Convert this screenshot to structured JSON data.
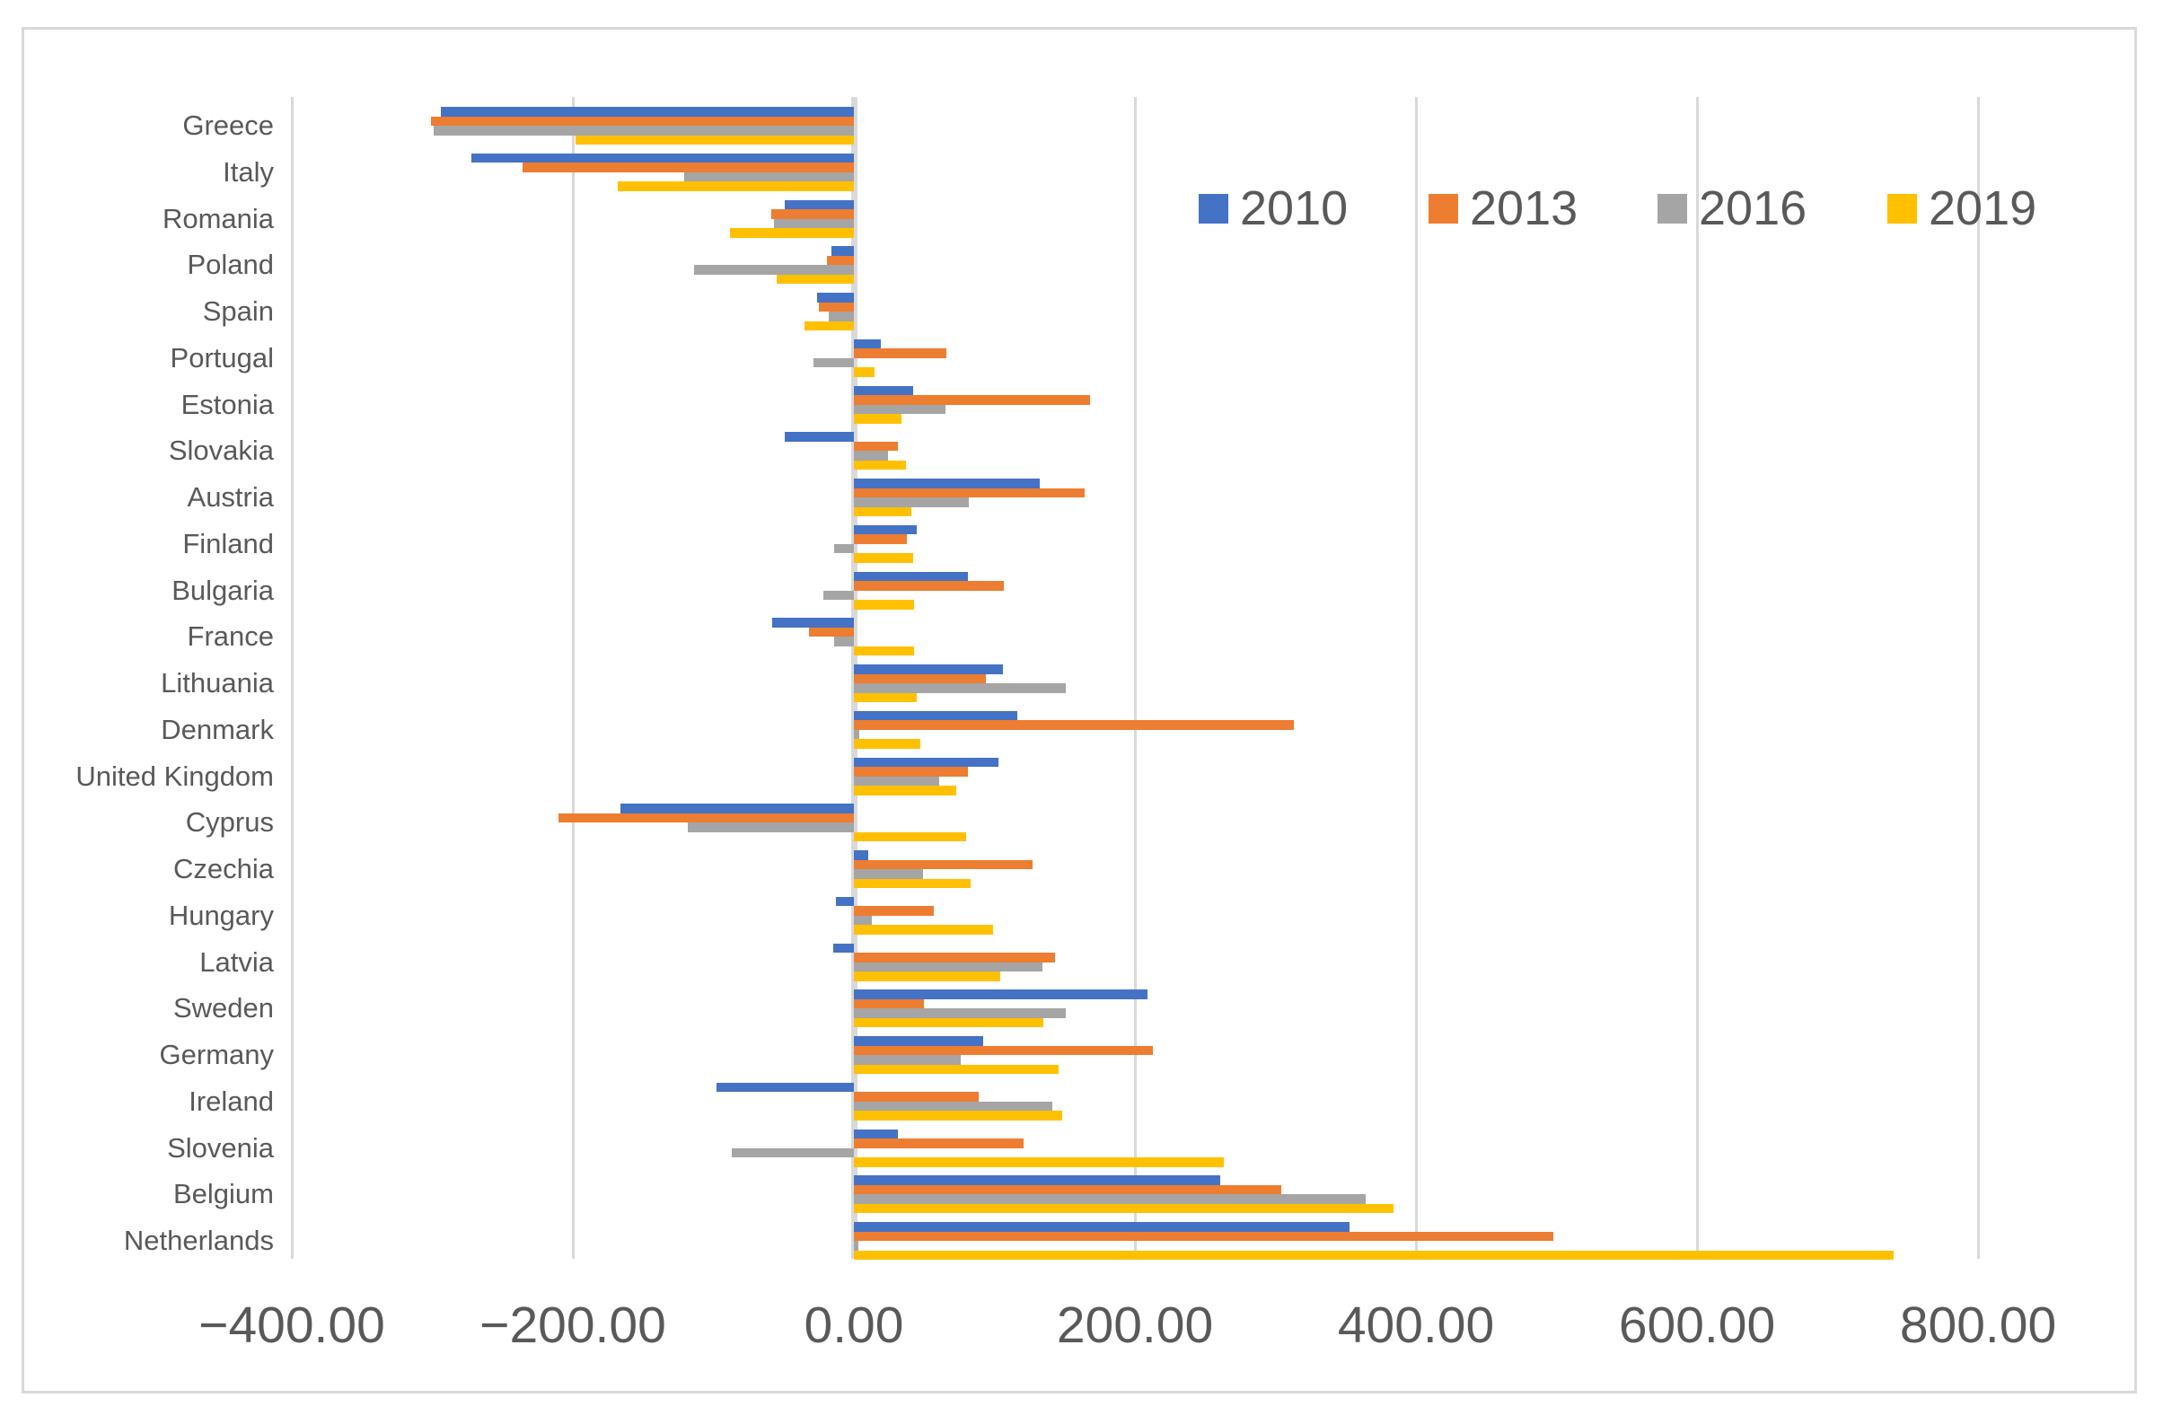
{
  "figure": {
    "background": "#ffffff",
    "border_color": "#d9d9d9",
    "gridline_color": "#d9d9d9",
    "axis_text_color": "#595959"
  },
  "chart_data": {
    "type": "bar",
    "orientation": "horizontal",
    "title": "",
    "xlabel": "",
    "ylabel": "",
    "grid": "vertical",
    "legend_position": "top-right-inside",
    "categories": [
      "Greece",
      "Italy",
      "Romania",
      "Poland",
      "Spain",
      "Portugal",
      "Estonia",
      "Slovakia",
      "Austria",
      "Finland",
      "Bulgaria",
      "France",
      "Lithuania",
      "Denmark",
      "United Kingdom",
      "Cyprus",
      "Czechia",
      "Hungary",
      "Latvia",
      "Sweden",
      "Germany",
      "Ireland",
      "Slovenia",
      "Belgium",
      "Netherlands"
    ],
    "series": [
      {
        "name": "2010",
        "color": "#4472C4",
        "values": [
          -294,
          -272,
          -49,
          -16,
          -26,
          19,
          42,
          -49,
          132,
          45,
          81,
          -58,
          106,
          116,
          103,
          -166,
          10,
          -13,
          -15,
          209,
          92,
          -98,
          31,
          261,
          353
        ]
      },
      {
        "name": "2013",
        "color": "#ED7D31",
        "values": [
          -301,
          -236,
          -59,
          -19,
          -25,
          66,
          168,
          31,
          164,
          38,
          107,
          -32,
          94,
          313,
          81,
          -210,
          127,
          57,
          143,
          50,
          213,
          89,
          121,
          304,
          498
        ]
      },
      {
        "name": "2016",
        "color": "#A5A5A5",
        "values": [
          -299,
          -121,
          -57,
          -114,
          -18,
          -29,
          65,
          24,
          82,
          -14,
          -22,
          -14,
          151,
          4,
          61,
          -118,
          49,
          13,
          134,
          151,
          76,
          141,
          -87,
          364,
          3
        ]
      },
      {
        "name": "2019",
        "color": "#FFC000",
        "values": [
          -198,
          -168,
          -88,
          -55,
          -35,
          15,
          34,
          37,
          41,
          42,
          43,
          43,
          45,
          47,
          73,
          80,
          83,
          99,
          104,
          135,
          146,
          148,
          263,
          384,
          740
        ]
      }
    ],
    "x_axis": {
      "min": -400,
      "max": 800,
      "tick_step": 200,
      "tick_values": [
        -400,
        -200,
        0,
        200,
        400,
        600,
        800
      ],
      "tick_labels": [
        "−400.00",
        "−200.00",
        "0.00",
        "200.00",
        "400.00",
        "600.00",
        "800.00"
      ]
    }
  }
}
